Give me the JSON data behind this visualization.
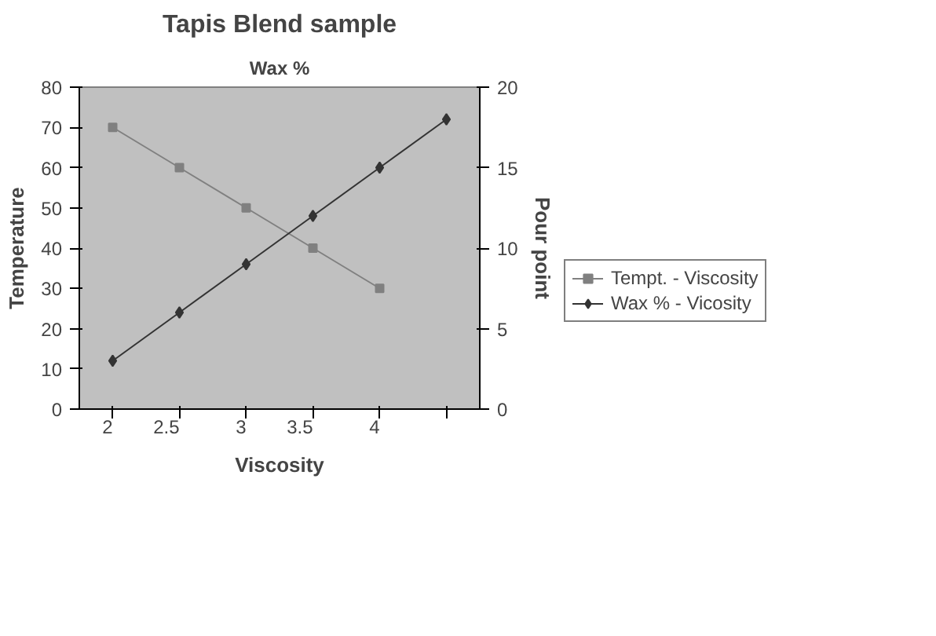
{
  "chart_data": {
    "type": "line",
    "title": "Tapis Blend sample",
    "subtitle": "Wax %",
    "xlabel": "Viscosity",
    "ylabel": "Temperature",
    "y2label": "Pour point",
    "categories": [
      "2",
      "2.5",
      "3",
      "3.5",
      "4",
      null
    ],
    "series": [
      {
        "name": "Tempt. - Viscosity",
        "color": "#808080",
        "marker": "square",
        "values": [
          70,
          60,
          50,
          40,
          30,
          null
        ]
      },
      {
        "name": "Wax % - Vicosity",
        "color": "#333333",
        "marker": "diamond",
        "axis": "y2",
        "values": [
          3,
          6,
          9,
          12,
          15,
          18
        ]
      }
    ],
    "ylim": [
      0,
      80
    ],
    "yticks": [
      0,
      10,
      20,
      30,
      40,
      50,
      60,
      70,
      80
    ],
    "y2lim": [
      0,
      20
    ],
    "y2ticks": [
      0,
      5,
      10,
      15,
      20
    ],
    "grid": false,
    "legend": "right",
    "line_style": "solid"
  }
}
